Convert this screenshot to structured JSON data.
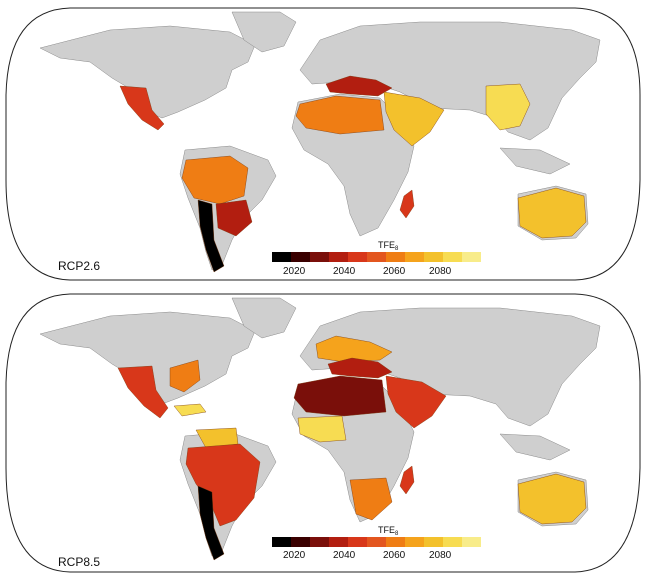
{
  "colorbar": {
    "title_main": "TFE",
    "title_sub": "8",
    "ticks": [
      "2020",
      "2040",
      "2060",
      "2080"
    ],
    "colors": [
      "#000000",
      "#3a0000",
      "#7a0f0a",
      "#b21e10",
      "#d8371a",
      "#e3561f",
      "#ef7d14",
      "#f5a31c",
      "#f3c12c",
      "#f7dc52",
      "#f8ec8a"
    ]
  },
  "panels": [
    {
      "id": "top",
      "label": "RCP2.6",
      "regions": [
        {
          "name": "central-america",
          "color": "#d8371a"
        },
        {
          "name": "amazon",
          "color": "#ef7d14"
        },
        {
          "name": "southern-south-america",
          "color": "#b21e10"
        },
        {
          "name": "andes",
          "color": "#000000"
        },
        {
          "name": "mediterranean",
          "color": "#b21e10"
        },
        {
          "name": "sahara",
          "color": "#ef7d14"
        },
        {
          "name": "west-asia",
          "color": "#f3c12c"
        },
        {
          "name": "east-asia",
          "color": "#f7dc52"
        },
        {
          "name": "madagascar",
          "color": "#d8371a"
        },
        {
          "name": "australia",
          "color": "#f3c12c"
        }
      ]
    },
    {
      "id": "bottom",
      "label": "RCP8.5",
      "regions": [
        {
          "name": "central-america",
          "color": "#d8371a"
        },
        {
          "name": "eastern-north-america",
          "color": "#ef7d14"
        },
        {
          "name": "caribbean",
          "color": "#f7dc52"
        },
        {
          "name": "northern-south-america",
          "color": "#f3c12c"
        },
        {
          "name": "amazon",
          "color": "#d8371a"
        },
        {
          "name": "andes",
          "color": "#000000"
        },
        {
          "name": "europe",
          "color": "#f5a31c"
        },
        {
          "name": "mediterranean",
          "color": "#b21e10"
        },
        {
          "name": "sahara",
          "color": "#7a0f0a"
        },
        {
          "name": "west-asia",
          "color": "#d8371a"
        },
        {
          "name": "west-africa",
          "color": "#f7dc52"
        },
        {
          "name": "southern-africa",
          "color": "#ef7d14"
        },
        {
          "name": "madagascar",
          "color": "#d8371a"
        },
        {
          "name": "australia",
          "color": "#f3c12c"
        }
      ]
    }
  ]
}
